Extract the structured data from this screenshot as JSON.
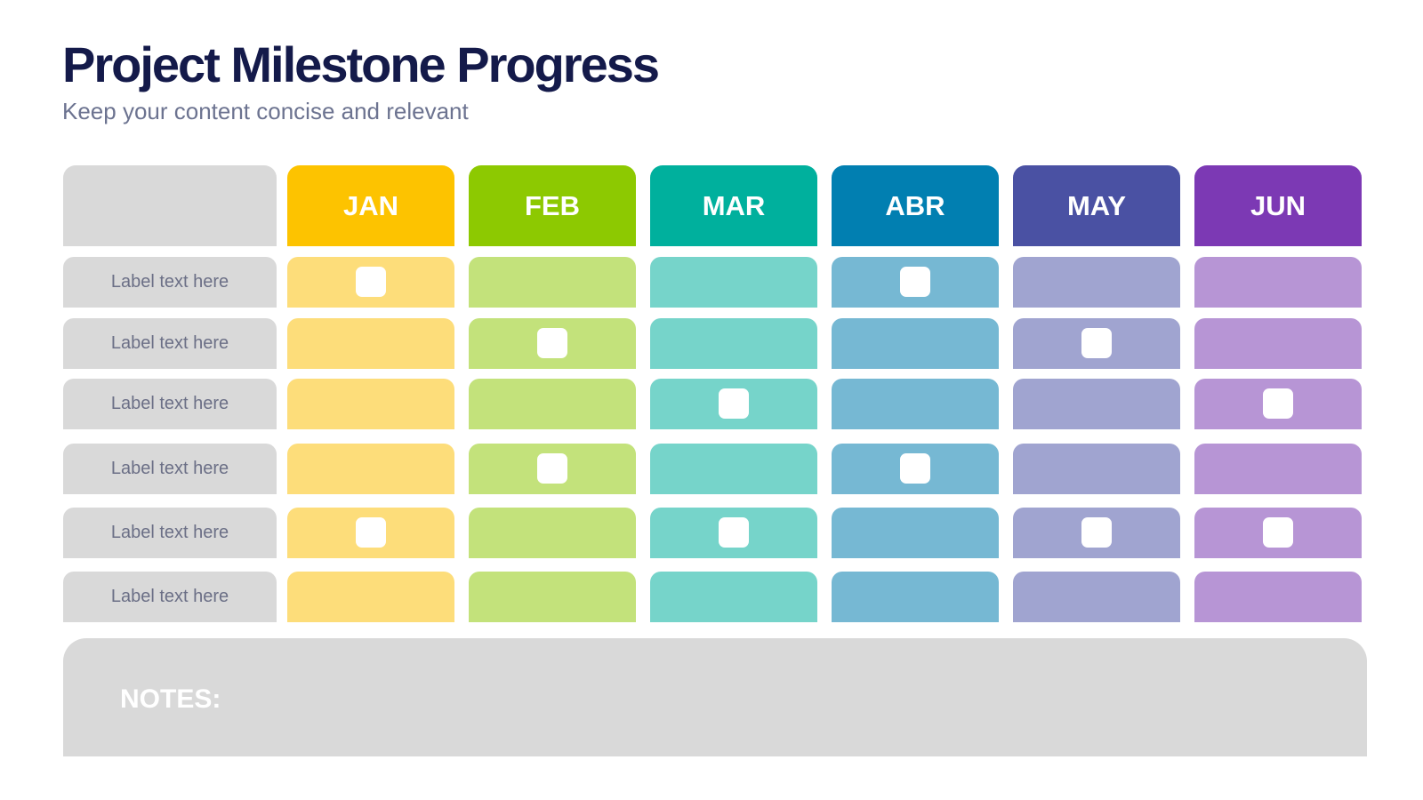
{
  "title": "Project Milestone Progress",
  "subtitle": "Keep your content concise and relevant",
  "months": [
    {
      "label": "JAN",
      "color": "#fdc300",
      "light": "#fddd7a"
    },
    {
      "label": "FEB",
      "color": "#8dc901",
      "light": "#c3e27b"
    },
    {
      "label": "MAR",
      "color": "#00b09d",
      "light": "#76d4ca"
    },
    {
      "label": "ABR",
      "color": "#017fb1",
      "light": "#76b8d3"
    },
    {
      "label": "MAY",
      "color": "#4a51a3",
      "light": "#a0a4d0"
    },
    {
      "label": "JUN",
      "color": "#7c39b4",
      "light": "#b795d5"
    }
  ],
  "rows": [
    {
      "label": "Label text here",
      "milestones": [
        true,
        false,
        false,
        true,
        false,
        false
      ]
    },
    {
      "label": "Label text here",
      "milestones": [
        false,
        true,
        false,
        false,
        true,
        false
      ]
    },
    {
      "label": "Label text here",
      "milestones": [
        false,
        false,
        true,
        false,
        false,
        true
      ]
    },
    {
      "label": "Label text here",
      "milestones": [
        false,
        true,
        false,
        true,
        false,
        false
      ]
    },
    {
      "label": "Label text here",
      "milestones": [
        true,
        false,
        true,
        false,
        true,
        true
      ]
    },
    {
      "label": "Label text here",
      "milestones": [
        false,
        false,
        false,
        false,
        false,
        false
      ]
    }
  ],
  "notes": {
    "label": "NOTES:"
  }
}
